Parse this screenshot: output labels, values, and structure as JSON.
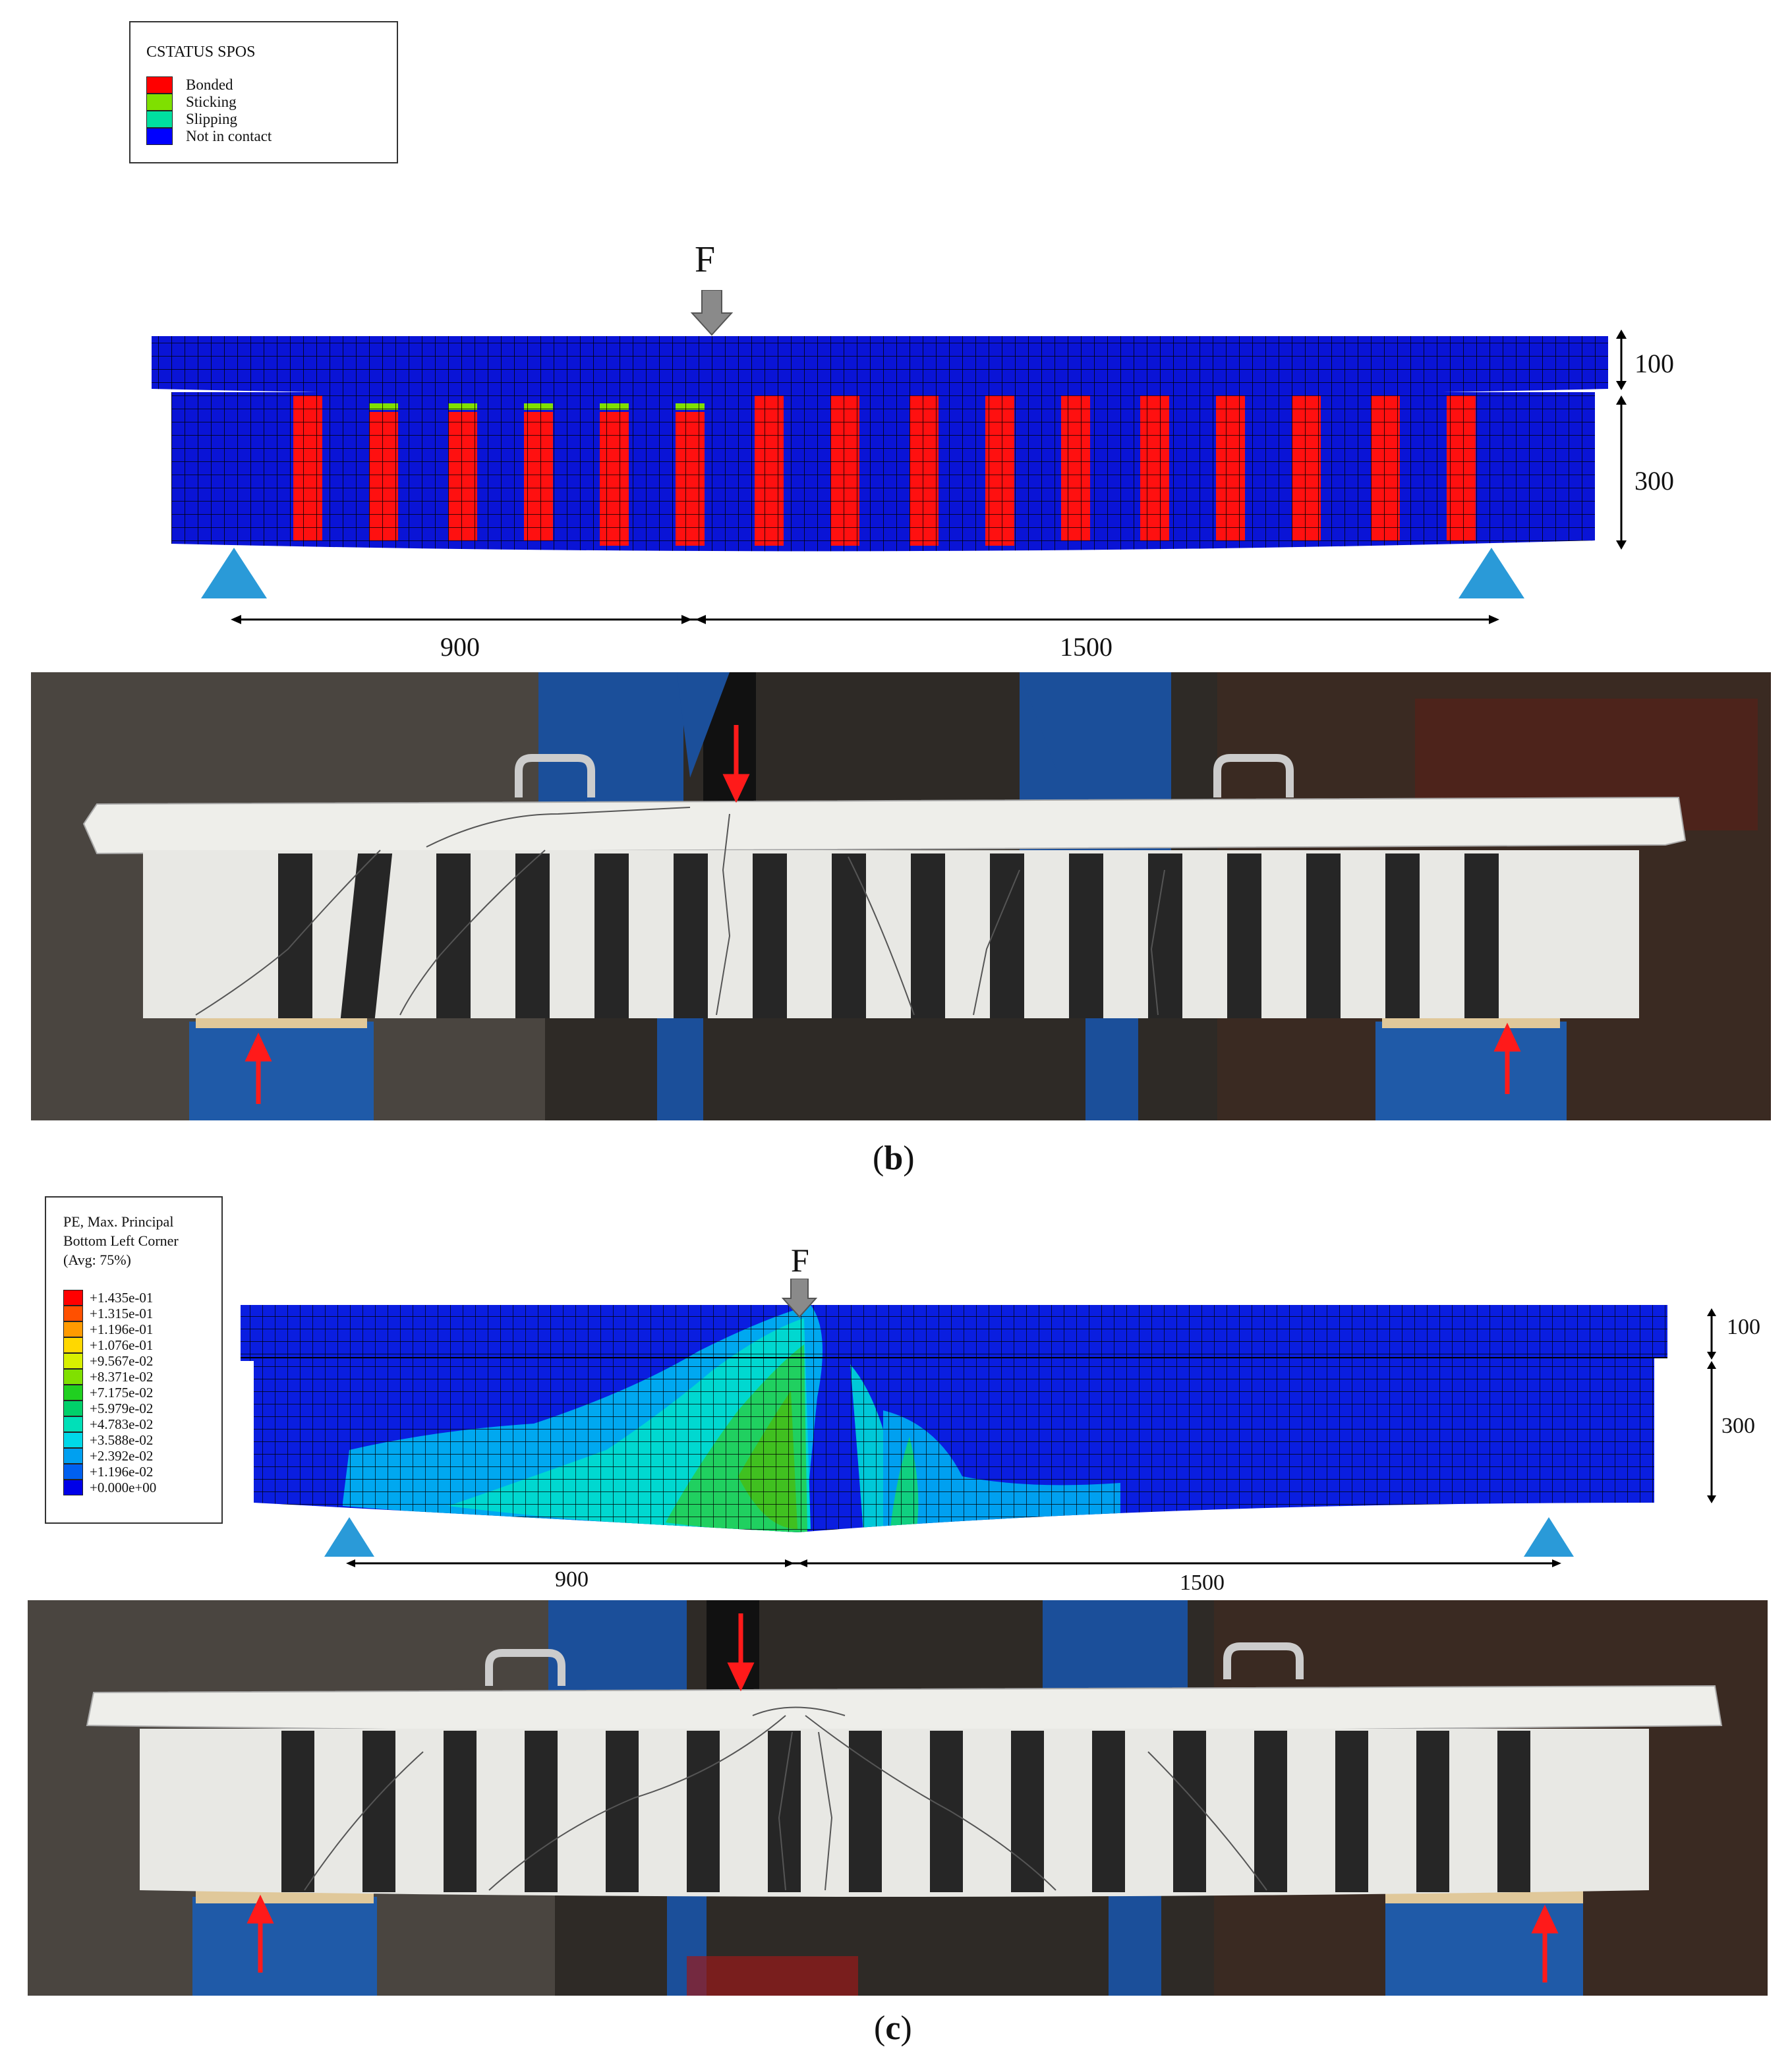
{
  "panel_b": {
    "legend": {
      "title": "CSTATUS  SPOS",
      "items": [
        {
          "label": "Bonded",
          "color": "#ff0000"
        },
        {
          "label": "Sticking",
          "color": "#7fe000"
        },
        {
          "label": "Slipping",
          "color": "#00e0a0"
        },
        {
          "label": "Not in contact",
          "color": "#0000ff"
        }
      ]
    },
    "load_label": "F",
    "dim_slab": "100",
    "dim_web": "300",
    "span_left": "900",
    "span_right": "1500",
    "caption_letter": "b"
  },
  "panel_c": {
    "legend": {
      "title_lines": [
        "PE, Max. Principal",
        "Bottom Left Corner",
        "(Avg: 75%)"
      ],
      "items": [
        {
          "label": "+1.435e-01",
          "color": "#ff0000"
        },
        {
          "label": "+1.315e-01",
          "color": "#ff5000"
        },
        {
          "label": "+1.196e-01",
          "color": "#ff9a00"
        },
        {
          "label": "+1.076e-01",
          "color": "#ffd800"
        },
        {
          "label": "+9.567e-02",
          "color": "#d8f000"
        },
        {
          "label": "+8.371e-02",
          "color": "#80e000"
        },
        {
          "label": "+7.175e-02",
          "color": "#20d020"
        },
        {
          "label": "+5.979e-02",
          "color": "#00d06a"
        },
        {
          "label": "+4.783e-02",
          "color": "#00e0b8"
        },
        {
          "label": "+3.588e-02",
          "color": "#00d8e8"
        },
        {
          "label": "+2.392e-02",
          "color": "#00a0f0"
        },
        {
          "label": "+1.196e-02",
          "color": "#0060f0"
        },
        {
          "label": "+0.000e+00",
          "color": "#0000e8"
        }
      ]
    },
    "load_label": "F",
    "dim_slab": "100",
    "dim_web": "300",
    "span_left": "900",
    "span_right": "1500",
    "caption_letter": "c"
  },
  "colors": {
    "mesh_blue": "#0a14d6",
    "bonded_red": "#ff1010",
    "support_blue": "#2a9ad8",
    "arrow_gray": "#8a8a8a",
    "photo_bg": "#3a3530",
    "photo_frame": "#1b4f9a",
    "concrete": "#eeeeea",
    "cfrp": "#262626",
    "red_arrow": "#ff1a1a"
  }
}
